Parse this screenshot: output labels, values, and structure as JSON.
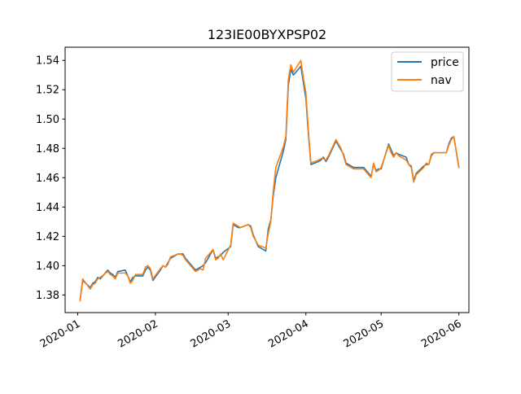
{
  "chart_data": {
    "type": "line",
    "title": "123IE00BYXPSP02",
    "xlabel": "",
    "ylabel": "",
    "xlim": [
      "2019-12-27",
      "2020-06-05"
    ],
    "ylim": [
      1.368,
      1.549
    ],
    "x_ticks": [
      {
        "date": "2020-01-01",
        "label": "2020-01"
      },
      {
        "date": "2020-02-01",
        "label": "2020-02"
      },
      {
        "date": "2020-03-01",
        "label": "2020-03"
      },
      {
        "date": "2020-04-01",
        "label": "2020-04"
      },
      {
        "date": "2020-05-01",
        "label": "2020-05"
      },
      {
        "date": "2020-06-01",
        "label": "2020-06"
      }
    ],
    "y_ticks": [
      {
        "value": 1.38,
        "label": "1.38"
      },
      {
        "value": 1.4,
        "label": "1.40"
      },
      {
        "value": 1.42,
        "label": "1.42"
      },
      {
        "value": 1.44,
        "label": "1.44"
      },
      {
        "value": 1.46,
        "label": "1.46"
      },
      {
        "value": 1.48,
        "label": "1.48"
      },
      {
        "value": 1.5,
        "label": "1.50"
      },
      {
        "value": 1.52,
        "label": "1.52"
      },
      {
        "value": 1.54,
        "label": "1.54"
      }
    ],
    "legend_position": "top-right",
    "grid": false,
    "series": [
      {
        "name": "price",
        "color": "#1f77b4",
        "points": [
          [
            "2020-01-02",
            1.377
          ],
          [
            "2020-01-03",
            1.39
          ],
          [
            "2020-01-06",
            1.385
          ],
          [
            "2020-01-07",
            1.388
          ],
          [
            "2020-01-08",
            1.389
          ],
          [
            "2020-01-09",
            1.392
          ],
          [
            "2020-01-10",
            1.391
          ],
          [
            "2020-01-13",
            1.397
          ],
          [
            "2020-01-14",
            1.395
          ],
          [
            "2020-01-15",
            1.394
          ],
          [
            "2020-01-16",
            1.392
          ],
          [
            "2020-01-17",
            1.396
          ],
          [
            "2020-01-20",
            1.397
          ],
          [
            "2020-01-21",
            1.393
          ],
          [
            "2020-01-22",
            1.389
          ],
          [
            "2020-01-23",
            1.392
          ],
          [
            "2020-01-24",
            1.393
          ],
          [
            "2020-01-27",
            1.393
          ],
          [
            "2020-01-28",
            1.397
          ],
          [
            "2020-01-29",
            1.399
          ],
          [
            "2020-01-30",
            1.397
          ],
          [
            "2020-01-31",
            1.39
          ],
          [
            "2020-02-03",
            1.397
          ],
          [
            "2020-02-04",
            1.4
          ],
          [
            "2020-02-05",
            1.399
          ],
          [
            "2020-02-06",
            1.402
          ],
          [
            "2020-02-07",
            1.405
          ],
          [
            "2020-02-10",
            1.408
          ],
          [
            "2020-02-11",
            1.408
          ],
          [
            "2020-02-12",
            1.408
          ],
          [
            "2020-02-13",
            1.405
          ],
          [
            "2020-02-14",
            1.403
          ],
          [
            "2020-02-17",
            1.397
          ],
          [
            "2020-02-18",
            1.398
          ],
          [
            "2020-02-19",
            1.399
          ],
          [
            "2020-02-20",
            1.4
          ],
          [
            "2020-02-21",
            1.402
          ],
          [
            "2020-02-24",
            1.411
          ],
          [
            "2020-02-25",
            1.405
          ],
          [
            "2020-02-26",
            1.406
          ],
          [
            "2020-02-27",
            1.407
          ],
          [
            "2020-02-28",
            1.409
          ],
          [
            "2020-03-02",
            1.413
          ],
          [
            "2020-03-03",
            1.428
          ],
          [
            "2020-03-04",
            1.427
          ],
          [
            "2020-03-05",
            1.426
          ],
          [
            "2020-03-06",
            1.426
          ],
          [
            "2020-03-09",
            1.428
          ],
          [
            "2020-03-10",
            1.427
          ],
          [
            "2020-03-11",
            1.421
          ],
          [
            "2020-03-12",
            1.417
          ],
          [
            "2020-03-13",
            1.413
          ],
          [
            "2020-03-16",
            1.41
          ],
          [
            "2020-03-17",
            1.425
          ],
          [
            "2020-03-18",
            1.431
          ],
          [
            "2020-03-19",
            1.448
          ],
          [
            "2020-03-20",
            1.46
          ],
          [
            "2020-03-23",
            1.478
          ],
          [
            "2020-03-24",
            1.486
          ],
          [
            "2020-03-25",
            1.523
          ],
          [
            "2020-03-26",
            1.534
          ],
          [
            "2020-03-27",
            1.53
          ],
          [
            "2020-03-30",
            1.536
          ],
          [
            "2020-03-31",
            1.525
          ],
          [
            "2020-04-01",
            1.514
          ],
          [
            "2020-04-02",
            1.49
          ],
          [
            "2020-04-03",
            1.469
          ],
          [
            "2020-04-06",
            1.471
          ],
          [
            "2020-04-07",
            1.472
          ],
          [
            "2020-04-08",
            1.474
          ],
          [
            "2020-04-09",
            1.471
          ],
          [
            "2020-04-10",
            1.474
          ],
          [
            "2020-04-13",
            1.485
          ],
          [
            "2020-04-14",
            1.482
          ],
          [
            "2020-04-15",
            1.479
          ],
          [
            "2020-04-16",
            1.476
          ],
          [
            "2020-04-17",
            1.47
          ],
          [
            "2020-04-20",
            1.467
          ],
          [
            "2020-04-21",
            1.467
          ],
          [
            "2020-04-22",
            1.467
          ],
          [
            "2020-04-23",
            1.467
          ],
          [
            "2020-04-24",
            1.467
          ],
          [
            "2020-04-27",
            1.461
          ],
          [
            "2020-04-28",
            1.469
          ],
          [
            "2020-04-29",
            1.465
          ],
          [
            "2020-04-30",
            1.466
          ],
          [
            "2020-05-01",
            1.466
          ],
          [
            "2020-05-04",
            1.483
          ],
          [
            "2020-05-05",
            1.479
          ],
          [
            "2020-05-06",
            1.475
          ],
          [
            "2020-05-07",
            1.477
          ],
          [
            "2020-05-08",
            1.476
          ],
          [
            "2020-05-11",
            1.474
          ],
          [
            "2020-05-12",
            1.469
          ],
          [
            "2020-05-13",
            1.468
          ],
          [
            "2020-05-14",
            1.458
          ],
          [
            "2020-05-15",
            1.463
          ],
          [
            "2020-05-18",
            1.468
          ],
          [
            "2020-05-19",
            1.469
          ],
          [
            "2020-05-20",
            1.469
          ],
          [
            "2020-05-21",
            1.475
          ],
          [
            "2020-05-22",
            1.477
          ],
          [
            "2020-05-25",
            1.477
          ],
          [
            "2020-05-26",
            1.477
          ],
          [
            "2020-05-27",
            1.477
          ],
          [
            "2020-05-28",
            1.483
          ],
          [
            "2020-05-29",
            1.487
          ],
          [
            "2020-05-30",
            1.488
          ],
          [
            "2020-06-01",
            1.467
          ]
        ]
      },
      {
        "name": "nav",
        "color": "#ff7f0e",
        "points": [
          [
            "2020-01-02",
            1.376
          ],
          [
            "2020-01-03",
            1.391
          ],
          [
            "2020-01-06",
            1.384
          ],
          [
            "2020-01-07",
            1.387
          ],
          [
            "2020-01-08",
            1.388
          ],
          [
            "2020-01-09",
            1.391
          ],
          [
            "2020-01-10",
            1.392
          ],
          [
            "2020-01-13",
            1.396
          ],
          [
            "2020-01-14",
            1.394
          ],
          [
            "2020-01-15",
            1.393
          ],
          [
            "2020-01-16",
            1.391
          ],
          [
            "2020-01-17",
            1.395
          ],
          [
            "2020-01-20",
            1.395
          ],
          [
            "2020-01-21",
            1.393
          ],
          [
            "2020-01-22",
            1.388
          ],
          [
            "2020-01-23",
            1.39
          ],
          [
            "2020-01-24",
            1.394
          ],
          [
            "2020-01-27",
            1.394
          ],
          [
            "2020-01-28",
            1.399
          ],
          [
            "2020-01-29",
            1.4
          ],
          [
            "2020-01-30",
            1.398
          ],
          [
            "2020-01-31",
            1.391
          ],
          [
            "2020-02-03",
            1.398
          ],
          [
            "2020-02-04",
            1.4
          ],
          [
            "2020-02-05",
            1.399
          ],
          [
            "2020-02-06",
            1.401
          ],
          [
            "2020-02-07",
            1.406
          ],
          [
            "2020-02-10",
            1.408
          ],
          [
            "2020-02-11",
            1.408
          ],
          [
            "2020-02-12",
            1.407
          ],
          [
            "2020-02-13",
            1.404
          ],
          [
            "2020-02-14",
            1.402
          ],
          [
            "2020-02-17",
            1.396
          ],
          [
            "2020-02-18",
            1.397
          ],
          [
            "2020-02-19",
            1.398
          ],
          [
            "2020-02-20",
            1.397
          ],
          [
            "2020-02-21",
            1.405
          ],
          [
            "2020-02-24",
            1.411
          ],
          [
            "2020-02-25",
            1.404
          ],
          [
            "2020-02-26",
            1.405
          ],
          [
            "2020-02-27",
            1.408
          ],
          [
            "2020-02-28",
            1.404
          ],
          [
            "2020-03-02",
            1.414
          ],
          [
            "2020-03-03",
            1.429
          ],
          [
            "2020-03-04",
            1.428
          ],
          [
            "2020-03-05",
            1.427
          ],
          [
            "2020-03-06",
            1.426
          ],
          [
            "2020-03-09",
            1.428
          ],
          [
            "2020-03-10",
            1.426
          ],
          [
            "2020-03-11",
            1.42
          ],
          [
            "2020-03-12",
            1.417
          ],
          [
            "2020-03-13",
            1.414
          ],
          [
            "2020-03-16",
            1.412
          ],
          [
            "2020-03-17",
            1.422
          ],
          [
            "2020-03-18",
            1.43
          ],
          [
            "2020-03-19",
            1.451
          ],
          [
            "2020-03-20",
            1.467
          ],
          [
            "2020-03-23",
            1.481
          ],
          [
            "2020-03-24",
            1.488
          ],
          [
            "2020-03-25",
            1.527
          ],
          [
            "2020-03-26",
            1.537
          ],
          [
            "2020-03-27",
            1.532
          ],
          [
            "2020-03-30",
            1.54
          ],
          [
            "2020-03-31",
            1.528
          ],
          [
            "2020-04-01",
            1.518
          ],
          [
            "2020-04-02",
            1.492
          ],
          [
            "2020-04-03",
            1.47
          ],
          [
            "2020-04-06",
            1.472
          ],
          [
            "2020-04-07",
            1.473
          ],
          [
            "2020-04-08",
            1.473
          ],
          [
            "2020-04-09",
            1.472
          ],
          [
            "2020-04-10",
            1.475
          ],
          [
            "2020-04-13",
            1.486
          ],
          [
            "2020-04-14",
            1.483
          ],
          [
            "2020-04-15",
            1.48
          ],
          [
            "2020-04-16",
            1.475
          ],
          [
            "2020-04-17",
            1.469
          ],
          [
            "2020-04-20",
            1.466
          ],
          [
            "2020-04-21",
            1.466
          ],
          [
            "2020-04-22",
            1.466
          ],
          [
            "2020-04-23",
            1.466
          ],
          [
            "2020-04-24",
            1.466
          ],
          [
            "2020-04-27",
            1.46
          ],
          [
            "2020-04-28",
            1.47
          ],
          [
            "2020-04-29",
            1.464
          ],
          [
            "2020-04-30",
            1.465
          ],
          [
            "2020-05-01",
            1.467
          ],
          [
            "2020-05-04",
            1.482
          ],
          [
            "2020-05-05",
            1.477
          ],
          [
            "2020-05-06",
            1.474
          ],
          [
            "2020-05-07",
            1.477
          ],
          [
            "2020-05-08",
            1.475
          ],
          [
            "2020-05-11",
            1.472
          ],
          [
            "2020-05-12",
            1.469
          ],
          [
            "2020-05-13",
            1.467
          ],
          [
            "2020-05-14",
            1.457
          ],
          [
            "2020-05-15",
            1.462
          ],
          [
            "2020-05-18",
            1.467
          ],
          [
            "2020-05-19",
            1.47
          ],
          [
            "2020-05-20",
            1.469
          ],
          [
            "2020-05-21",
            1.476
          ],
          [
            "2020-05-22",
            1.477
          ],
          [
            "2020-05-25",
            1.477
          ],
          [
            "2020-05-26",
            1.477
          ],
          [
            "2020-05-27",
            1.477
          ],
          [
            "2020-05-28",
            1.482
          ],
          [
            "2020-05-29",
            1.486
          ],
          [
            "2020-05-30",
            1.488
          ],
          [
            "2020-06-01",
            1.467
          ]
        ]
      }
    ]
  }
}
